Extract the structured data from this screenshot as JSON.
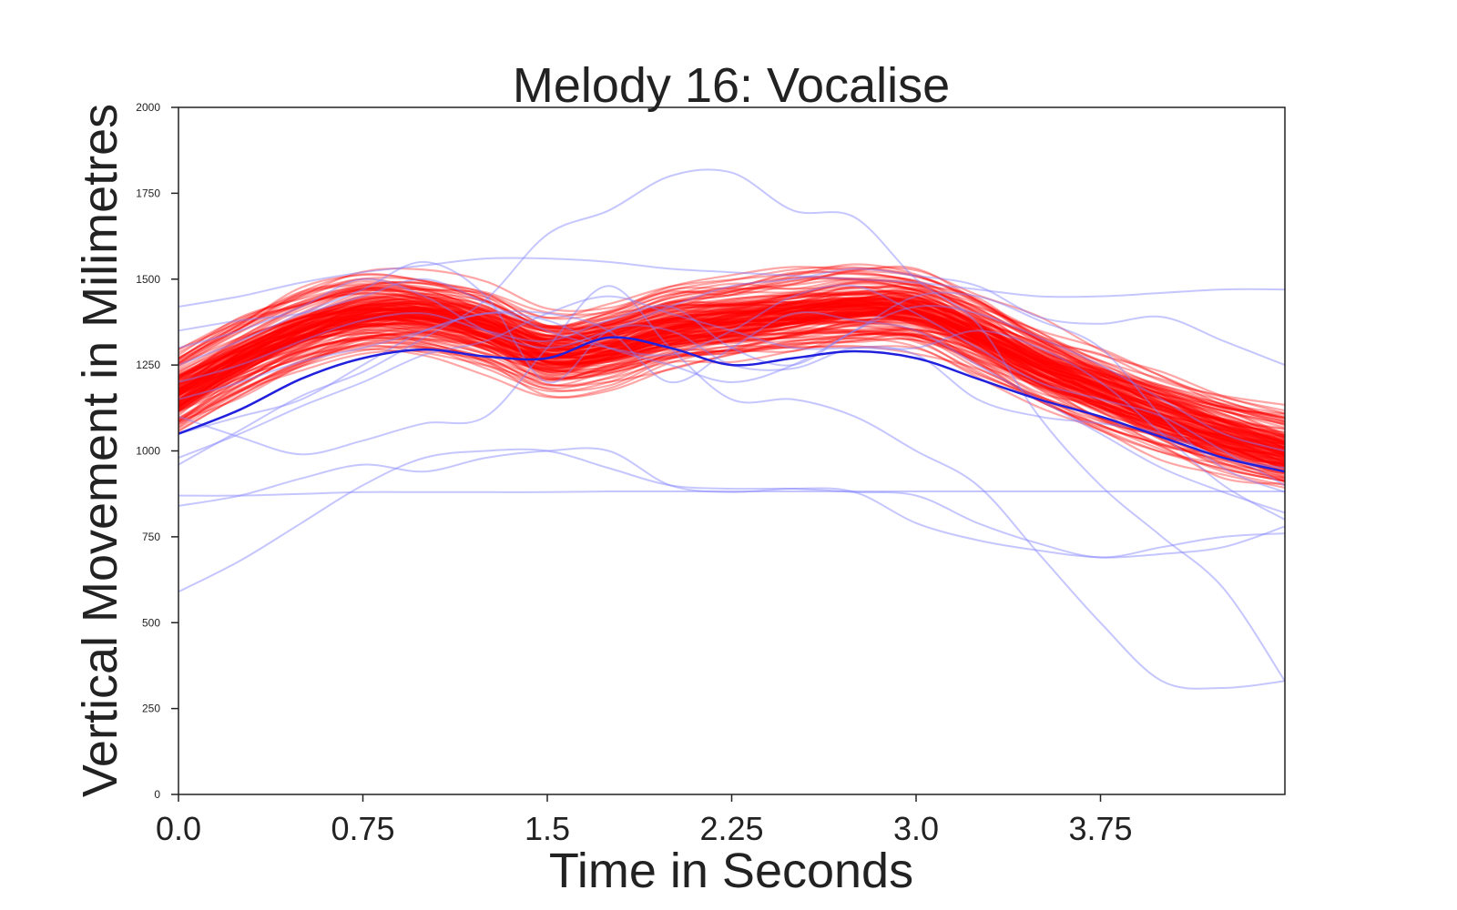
{
  "chart_data": {
    "type": "line",
    "title": "Melody 16: Vocalise",
    "xlabel": "Time in Seconds",
    "ylabel": "Vertical Movement in Milimetres",
    "xlim": [
      0,
      4.5
    ],
    "ylim": [
      0,
      2000
    ],
    "xticks": [
      "0.0",
      "0.75",
      "1.5",
      "2.25",
      "3.0",
      "3.75"
    ],
    "xtick_values": [
      0,
      0.75,
      1.5,
      2.25,
      3.0,
      3.75
    ],
    "yticks": [
      "0",
      "250",
      "500",
      "750",
      "1000",
      "1250",
      "1500",
      "1750",
      "2000"
    ],
    "ytick_values": [
      0,
      250,
      500,
      750,
      1000,
      1250,
      1500,
      1750,
      2000
    ],
    "grid": false,
    "colors": {
      "simulated": "#ff0000",
      "observed": "#8080ff",
      "mean": "#2020dd",
      "axes": "#222222"
    },
    "x": [
      0,
      0.25,
      0.5,
      0.75,
      1.0,
      1.25,
      1.5,
      1.75,
      2.0,
      2.25,
      2.5,
      2.75,
      3.0,
      3.25,
      3.5,
      3.75,
      4.0,
      4.25,
      4.5
    ],
    "band": {
      "center": [
        1170,
        1270,
        1350,
        1400,
        1400,
        1360,
        1290,
        1310,
        1360,
        1380,
        1400,
        1420,
        1410,
        1340,
        1250,
        1180,
        1110,
        1050,
        1000
      ],
      "spread": [
        150,
        150,
        150,
        150,
        150,
        150,
        150,
        150,
        150,
        150,
        150,
        150,
        150,
        150,
        150,
        150,
        150,
        150,
        150
      ]
    },
    "series": [
      {
        "values": [
          1050,
          1120,
          1210,
          1270,
          1295,
          1275,
          1270,
          1330,
          1300,
          1250,
          1270,
          1290,
          1270,
          1210,
          1150,
          1100,
          1040,
          980,
          940
        ]
      }
    ],
    "observed_series": [
      [
        1420,
        1450,
        1490,
        1520,
        1540,
        1560,
        1560,
        1550,
        1530,
        1520,
        1510,
        1500,
        1490,
        1470,
        1450,
        1450,
        1460,
        1470,
        1470
      ],
      [
        870,
        870,
        875,
        880,
        880,
        880,
        880,
        882,
        882,
        882,
        882,
        882,
        882,
        882,
        882,
        882,
        882,
        882,
        882
      ],
      [
        590,
        680,
        790,
        900,
        980,
        1000,
        1000,
        950,
        900,
        890,
        890,
        880,
        870,
        790,
        730,
        690,
        720,
        750,
        760
      ],
      [
        840,
        870,
        920,
        960,
        940,
        980,
        1000,
        1000,
        900,
        880,
        890,
        880,
        790,
        740,
        710,
        690,
        700,
        720,
        780
      ],
      [
        960,
        1060,
        1160,
        1230,
        1330,
        1440,
        1630,
        1700,
        1800,
        1810,
        1700,
        1680,
        1500,
        1370,
        1100,
        900,
        750,
        600,
        330
      ],
      [
        1100,
        1040,
        990,
        1030,
        1080,
        1100,
        1300,
        1480,
        1300,
        1150,
        1150,
        1100,
        1000,
        900,
        700,
        500,
        330,
        310,
        330
      ],
      [
        1250,
        1320,
        1400,
        1470,
        1550,
        1450,
        1200,
        1350,
        1350,
        1250,
        1240,
        1300,
        1280,
        1150,
        1100,
        1080,
        1050,
        980,
        950
      ],
      [
        1300,
        1350,
        1420,
        1500,
        1450,
        1350,
        1300,
        1350,
        1420,
        1480,
        1500,
        1530,
        1510,
        1480,
        1390,
        1370,
        1390,
        1320,
        1250
      ],
      [
        1150,
        1200,
        1260,
        1300,
        1350,
        1400,
        1380,
        1300,
        1250,
        1200,
        1250,
        1350,
        1450,
        1450,
        1380,
        1300,
        1100,
        950,
        880
      ],
      [
        1200,
        1250,
        1320,
        1380,
        1400,
        1350,
        1320,
        1380,
        1420,
        1300,
        1250,
        1350,
        1420,
        1400,
        1330,
        1250,
        1150,
        1050,
        1000
      ],
      [
        980,
        1050,
        1130,
        1200,
        1280,
        1320,
        1400,
        1450,
        1400,
        1350,
        1300,
        1300,
        1300,
        1350,
        1300,
        1200,
        1050,
        900,
        800
      ],
      [
        1350,
        1380,
        1400,
        1450,
        1500,
        1430,
        1350,
        1300,
        1280,
        1350,
        1450,
        1480,
        1400,
        1300,
        1200,
        1150,
        1100,
        1000,
        900
      ],
      [
        1050,
        1100,
        1150,
        1250,
        1350,
        1400,
        1400,
        1350,
        1200,
        1300,
        1400,
        1380,
        1350,
        1250,
        1150,
        1050,
        950,
        880,
        820
      ]
    ]
  }
}
